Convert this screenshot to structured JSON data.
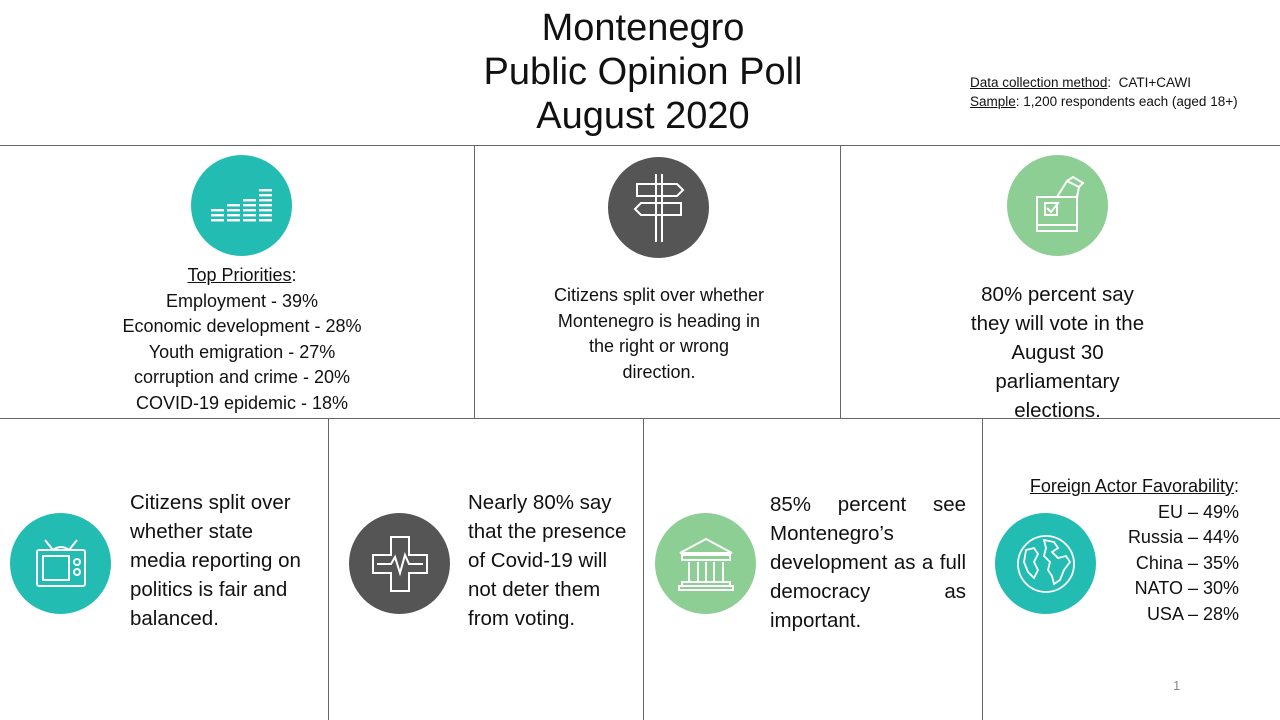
{
  "header": {
    "title_lines": [
      "Montenegro",
      "Public Opinion Poll",
      "August 2020"
    ],
    "method_label": "Data collection method",
    "method_value": "CATI+CAWI",
    "sample_label": "Sample",
    "sample_value": "1,200 respondents each (aged 18+)"
  },
  "priorities": {
    "icon": "bar-chart-icon",
    "heading": "Top Priorities",
    "items": [
      "Employment - 39%",
      "Economic development - 28%",
      "Youth emigration - 27%",
      "corruption and crime - 20%",
      "COVID-19 epidemic - 18%"
    ]
  },
  "direction": {
    "icon": "signpost-icon",
    "lines": [
      "Citizens split over whether",
      "Montenegro is heading in",
      "the right or wrong",
      "direction."
    ]
  },
  "vote": {
    "icon": "ballot-box-icon",
    "lines": [
      "80% percent say",
      "they will vote in the",
      "August 30",
      "parliamentary",
      "elections."
    ]
  },
  "media": {
    "icon": "television-icon",
    "lines": [
      "Citizens split over",
      "whether state",
      "media reporting on",
      "politics is fair and",
      "balanced."
    ]
  },
  "covid": {
    "icon": "medical-cross-icon",
    "lines": [
      "Nearly 80% say",
      "that the presence",
      "of Covid-19 will",
      "not deter them",
      "from voting."
    ]
  },
  "democracy": {
    "icon": "government-building-icon",
    "text": "85% percent see Montenegro’s development as a full democracy as important."
  },
  "foreign": {
    "icon": "globe-icon",
    "heading": "Foreign Actor Favorability",
    "items": [
      "EU – 49%",
      "Russia – 44%",
      "China – 35%",
      "NATO – 30%",
      "USA – 28%"
    ]
  },
  "page_number": "1",
  "colors": {
    "teal": "#22bcb2",
    "grey": "#555555",
    "green": "#8cce94"
  }
}
